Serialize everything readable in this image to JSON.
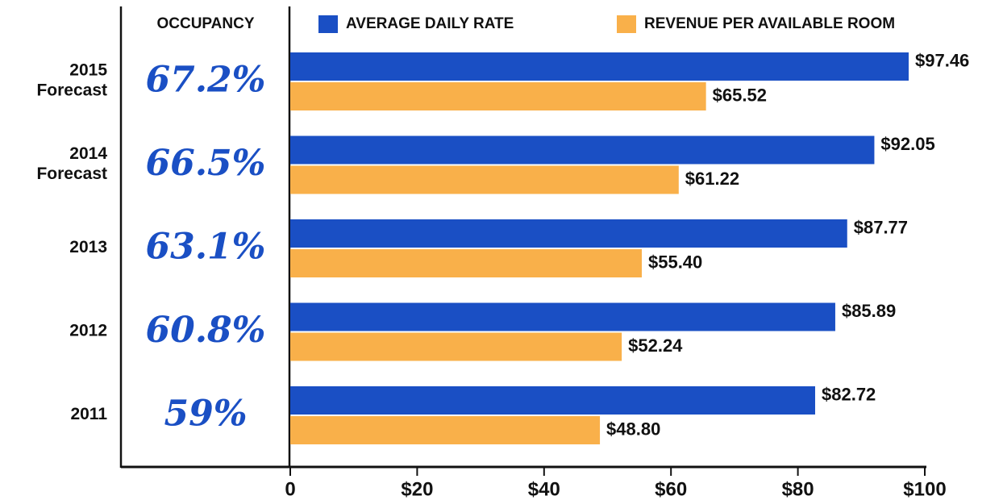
{
  "chart_data": {
    "type": "bar",
    "orientation": "horizontal",
    "categories": [
      "2015 Forecast",
      "2014 Forecast",
      "2013",
      "2012",
      "2011"
    ],
    "occupancy": {
      "label": "OCCUPANCY",
      "values": [
        67.2,
        66.5,
        63.1,
        60.8,
        59
      ],
      "value_labels": [
        "67.2%",
        "66.5%",
        "63.1%",
        "60.8%",
        "59%"
      ]
    },
    "series": [
      {
        "name": "AVERAGE DAILY RATE",
        "color": "#1a4fc4",
        "values": [
          97.46,
          92.05,
          87.77,
          85.89,
          82.72
        ],
        "value_labels": [
          "$97.46",
          "$92.05",
          "$87.77",
          "$85.89",
          "$82.72"
        ]
      },
      {
        "name": "REVENUE PER AVAILABLE ROOM",
        "color": "#f9b04a",
        "values": [
          65.52,
          61.22,
          55.4,
          52.24,
          48.8
        ],
        "value_labels": [
          "$65.52",
          "$61.22",
          "$55.40",
          "$52.24",
          "$48.80"
        ]
      }
    ],
    "xlim": [
      0,
      100
    ],
    "xticks": [
      0,
      {
        "value": 20,
        "label": "$20"
      },
      {
        "value": 40,
        "label": "$40"
      },
      {
        "value": 60,
        "label": "$60"
      },
      {
        "value": 80,
        "label": "$80"
      },
      {
        "value": 100,
        "label": "$100"
      }
    ]
  }
}
